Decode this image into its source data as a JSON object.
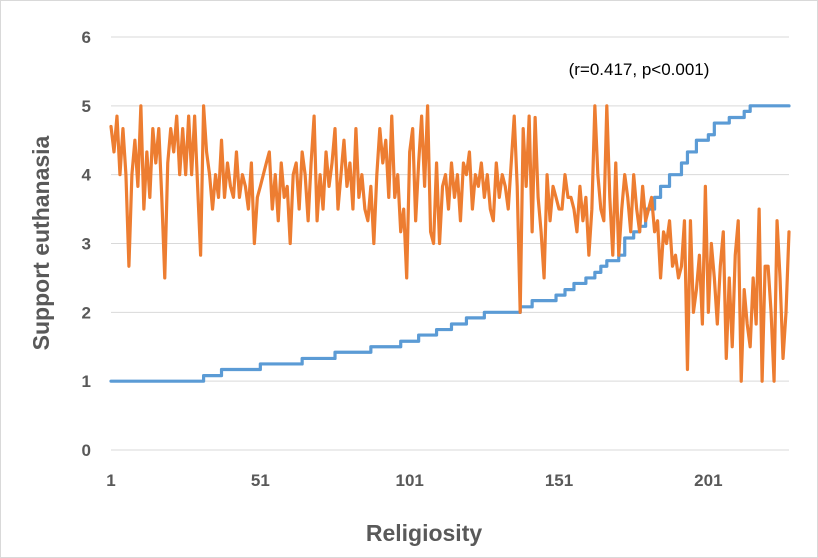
{
  "chart_data": {
    "type": "line",
    "xlabel": "Religiosity",
    "ylabel": "Support euthanasia",
    "annotation": "(r=0.417, p<0.001)",
    "xlim": [
      1,
      228
    ],
    "ylim": [
      0,
      6
    ],
    "x_ticks": [
      1,
      51,
      101,
      151,
      201
    ],
    "y_ticks": [
      0,
      1,
      2,
      3,
      4,
      5,
      6
    ],
    "grid": "horizontal",
    "legend": "none",
    "colors": {
      "religiosity": "#5b9bd5",
      "support": "#ed7d31",
      "grid": "#d9d9d9",
      "text": "#595959"
    },
    "series": [
      {
        "key": "religiosity",
        "values": [
          [
            1,
            1.0
          ],
          [
            32,
            1.0
          ],
          [
            32,
            1.08
          ],
          [
            38,
            1.08
          ],
          [
            38,
            1.17
          ],
          [
            51,
            1.17
          ],
          [
            51,
            1.25
          ],
          [
            65,
            1.25
          ],
          [
            65,
            1.33
          ],
          [
            76,
            1.33
          ],
          [
            76,
            1.42
          ],
          [
            88,
            1.42
          ],
          [
            88,
            1.5
          ],
          [
            98,
            1.5
          ],
          [
            98,
            1.58
          ],
          [
            104,
            1.58
          ],
          [
            104,
            1.67
          ],
          [
            110,
            1.67
          ],
          [
            110,
            1.75
          ],
          [
            115,
            1.75
          ],
          [
            115,
            1.83
          ],
          [
            120,
            1.83
          ],
          [
            120,
            1.92
          ],
          [
            126,
            1.92
          ],
          [
            126,
            2.0
          ],
          [
            138,
            2.0
          ],
          [
            138,
            2.08
          ],
          [
            142,
            2.08
          ],
          [
            142,
            2.17
          ],
          [
            150,
            2.17
          ],
          [
            150,
            2.25
          ],
          [
            153,
            2.25
          ],
          [
            153,
            2.33
          ],
          [
            156,
            2.33
          ],
          [
            156,
            2.42
          ],
          [
            160,
            2.42
          ],
          [
            160,
            2.5
          ],
          [
            163,
            2.5
          ],
          [
            163,
            2.58
          ],
          [
            165,
            2.58
          ],
          [
            165,
            2.67
          ],
          [
            167,
            2.67
          ],
          [
            167,
            2.75
          ],
          [
            171,
            2.75
          ],
          [
            171,
            2.83
          ],
          [
            173,
            2.83
          ],
          [
            173,
            3.08
          ],
          [
            176,
            3.08
          ],
          [
            176,
            3.17
          ],
          [
            178,
            3.17
          ],
          [
            178,
            3.25
          ],
          [
            180,
            3.25
          ],
          [
            180,
            3.5
          ],
          [
            183,
            3.5
          ],
          [
            183,
            3.67
          ],
          [
            185,
            3.67
          ],
          [
            185,
            3.83
          ],
          [
            188,
            3.83
          ],
          [
            188,
            4.0
          ],
          [
            192,
            4.0
          ],
          [
            192,
            4.17
          ],
          [
            194,
            4.17
          ],
          [
            194,
            4.33
          ],
          [
            197,
            4.33
          ],
          [
            197,
            4.5
          ],
          [
            201,
            4.5
          ],
          [
            201,
            4.58
          ],
          [
            203,
            4.58
          ],
          [
            203,
            4.75
          ],
          [
            208,
            4.75
          ],
          [
            208,
            4.83
          ],
          [
            213,
            4.83
          ],
          [
            213,
            4.92
          ],
          [
            215,
            4.92
          ],
          [
            215,
            5.0
          ],
          [
            228,
            5.0
          ]
        ]
      },
      {
        "key": "support",
        "values": [
          4.7,
          4.33,
          4.85,
          4.0,
          4.67,
          4.0,
          2.67,
          4.0,
          4.5,
          3.83,
          5.0,
          3.5,
          4.33,
          3.67,
          4.67,
          4.17,
          4.67,
          3.67,
          2.5,
          4.17,
          4.67,
          4.33,
          4.85,
          4.0,
          4.67,
          4.0,
          4.85,
          4.0,
          4.85,
          3.83,
          2.83,
          5.0,
          4.33,
          4.0,
          3.5,
          4.0,
          3.67,
          4.5,
          3.67,
          4.17,
          3.83,
          3.67,
          4.33,
          3.67,
          4.0,
          3.83,
          3.5,
          4.17,
          3.0,
          3.67,
          3.83,
          4.0,
          4.17,
          4.33,
          3.5,
          4.0,
          3.33,
          4.17,
          3.67,
          3.83,
          3.0,
          4.0,
          4.17,
          3.5,
          4.33,
          4.0,
          3.33,
          4.17,
          4.85,
          3.33,
          4.0,
          3.5,
          4.33,
          3.83,
          4.17,
          4.67,
          3.5,
          4.0,
          4.5,
          3.83,
          4.17,
          3.5,
          4.67,
          3.67,
          4.0,
          3.5,
          3.33,
          3.83,
          3.0,
          4.0,
          4.67,
          4.17,
          4.5,
          3.67,
          4.85,
          3.67,
          4.0,
          3.17,
          3.5,
          2.5,
          4.33,
          4.67,
          3.33,
          4.17,
          4.85,
          3.83,
          5.0,
          3.17,
          3.0,
          4.17,
          3.0,
          3.83,
          4.0,
          3.5,
          4.17,
          3.67,
          4.0,
          3.33,
          4.17,
          4.0,
          4.33,
          3.5,
          4.0,
          3.83,
          4.17,
          3.67,
          4.0,
          3.5,
          3.33,
          4.17,
          3.67,
          4.0,
          3.83,
          3.5,
          4.17,
          4.85,
          3.83,
          2.0,
          4.67,
          3.83,
          4.85,
          3.17,
          4.83,
          3.67,
          3.17,
          2.5,
          4.0,
          3.33,
          3.83,
          3.67,
          3.5,
          3.5,
          4.0,
          3.67,
          3.67,
          3.5,
          3.17,
          3.83,
          3.33,
          3.67,
          2.83,
          3.5,
          5.0,
          4.0,
          3.5,
          3.33,
          5.0,
          3.67,
          2.83,
          4.17,
          2.83,
          3.5,
          4.0,
          3.67,
          3.17,
          4.0,
          3.5,
          3.17,
          3.83,
          3.33,
          3.5,
          3.67,
          3.17,
          3.33,
          2.5,
          3.17,
          3.0,
          3.33,
          2.67,
          2.83,
          2.5,
          2.67,
          3.33,
          1.17,
          3.33,
          2.0,
          2.33,
          2.83,
          1.83,
          3.83,
          2.0,
          3.0,
          2.5,
          1.83,
          2.67,
          3.17,
          1.33,
          2.5,
          1.5,
          2.83,
          3.33,
          1.0,
          2.33,
          1.83,
          1.5,
          2.5,
          1.83,
          3.5,
          1.0,
          2.67,
          2.67,
          2.0,
          1.0,
          3.33,
          2.5,
          1.33,
          2.0,
          3.17
        ]
      }
    ]
  }
}
